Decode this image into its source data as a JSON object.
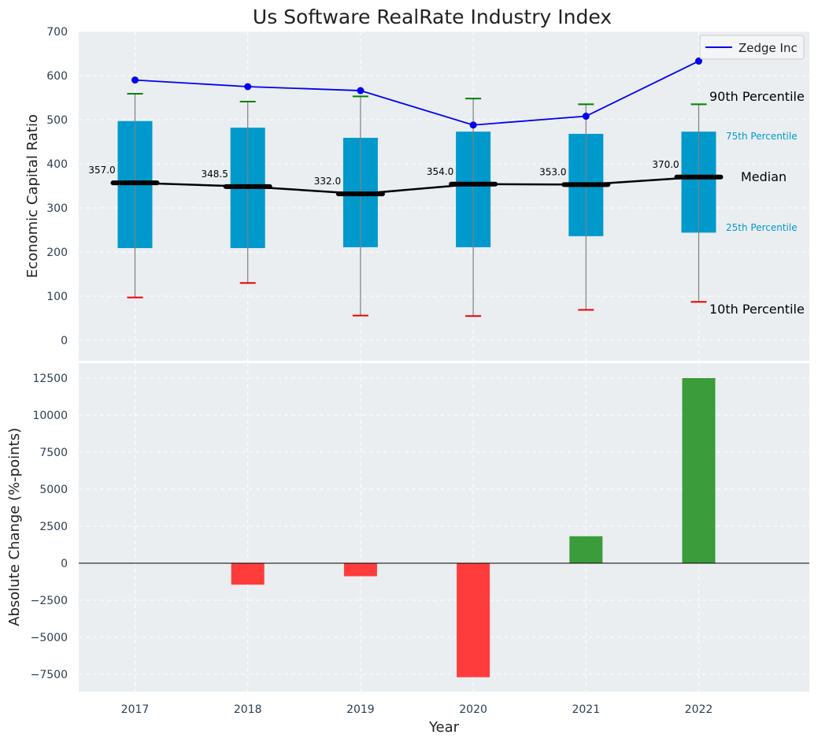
{
  "chart_data": [
    {
      "type": "box",
      "title": "Us Software RealRate Industry Index",
      "xlabel": "",
      "ylabel": "Economic Capital Ratio",
      "ylim": [
        -50,
        700
      ],
      "yticks": [
        0,
        100,
        200,
        300,
        400,
        500,
        600,
        700
      ],
      "grid": true,
      "legend": {
        "position": "top-right",
        "entries": [
          "Zedge Inc"
        ]
      },
      "categories": [
        "2017",
        "2018",
        "2019",
        "2020",
        "2021",
        "2022"
      ],
      "p10": [
        97,
        130,
        56,
        55,
        69,
        87
      ],
      "p25": [
        209,
        209,
        211,
        211,
        236,
        244
      ],
      "median": [
        357.0,
        348.5,
        332.0,
        354.0,
        353.0,
        370.0
      ],
      "median_labels": [
        "357.0",
        "348.5",
        "332.0",
        "354.0",
        "353.0",
        "370.0"
      ],
      "p75": [
        497,
        482,
        459,
        473,
        468,
        473
      ],
      "p90": [
        559,
        541,
        553,
        548,
        535,
        535
      ],
      "series": [
        {
          "name": "Zedge Inc",
          "values": [
            590,
            575,
            566,
            488,
            508,
            633
          ]
        }
      ],
      "annotations": {
        "p90": "90th Percentile",
        "p75": "75th Percentile",
        "median": "Median",
        "p25": "25th Percentile",
        "p10": "10th Percentile"
      },
      "colors": {
        "box": "#0099cc",
        "series": "#0000ee",
        "median": "#000000",
        "p90_cap": "#008000",
        "p10_cap": "#ee0000",
        "whisker": "#808080",
        "plot_bg": "#eaeef0"
      }
    },
    {
      "type": "bar",
      "xlabel": "Year",
      "ylabel": "Absolute Change (%-points)",
      "ylim": [
        -8700,
        13500
      ],
      "yticks": [
        -7500,
        -5000,
        -2500,
        0,
        2500,
        5000,
        7500,
        10000,
        12500
      ],
      "ytick_labels": [
        "−7500",
        "−5000",
        "−2500",
        "0",
        "2500",
        "5000",
        "7500",
        "10000",
        "12500"
      ],
      "grid": true,
      "categories": [
        "2017",
        "2018",
        "2019",
        "2020",
        "2021",
        "2022"
      ],
      "values": [
        0,
        -1450,
        -880,
        -7700,
        1820,
        12500
      ],
      "colors": {
        "positive": "#3a9c3a",
        "negative": "#ff3c3c",
        "plot_bg": "#eaeef0"
      }
    }
  ]
}
